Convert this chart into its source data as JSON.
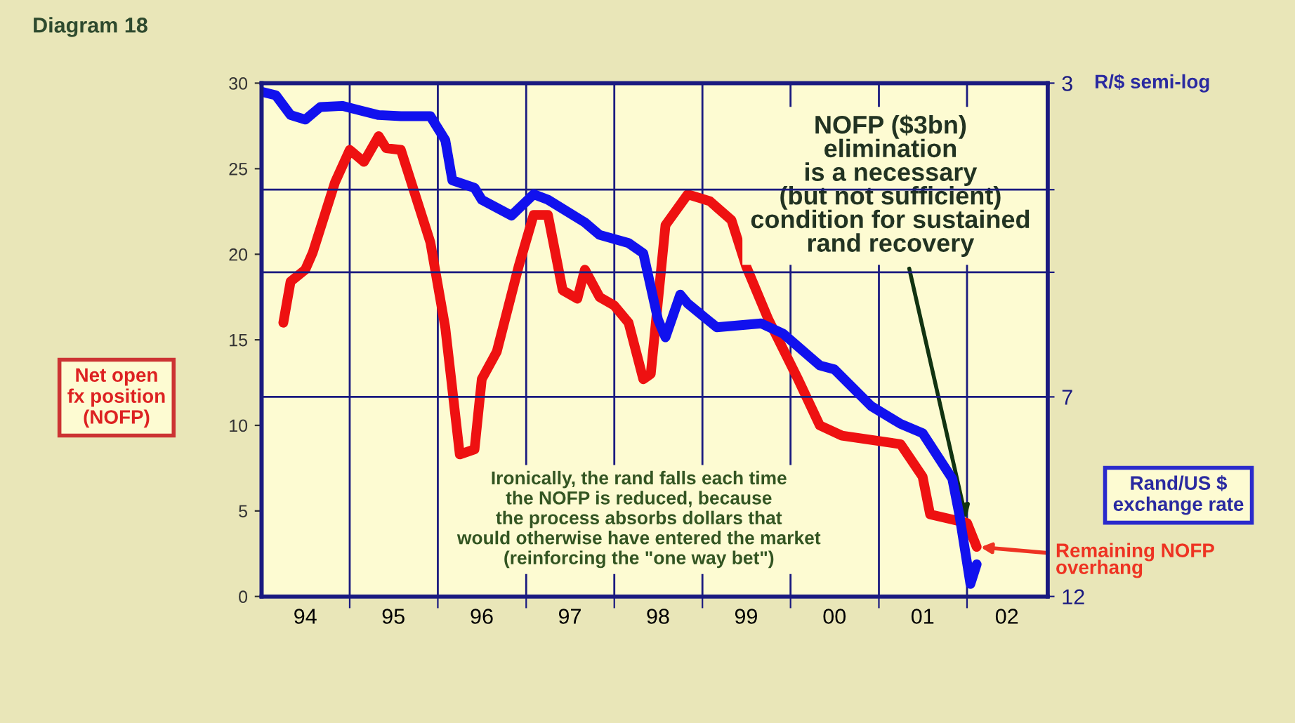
{
  "chart_data": {
    "type": "line",
    "title": "Diagram 18",
    "ylabel": "Net open\nfx position\n(NOFP)",
    "y2label": "Rand/US $\nexchange rate",
    "annotations": [
      "R/$ semi-log",
      {
        "text": "NOFP ($3bn)\nelimination\nis a necessary\n(but not sufficient)\ncondition for sustained\nrand recovery",
        "x": "2002-01",
        "y": 4.3
      },
      "Ironically, the rand falls each time\nthe NOFP is reduced, because\nthe process absorbs dollars that\nwould otherwise have entered the market\n(reinforcing the \"one way bet\")",
      {
        "text": "Remaining NOFP\noverhang",
        "x": "2002-02-10",
        "y": 2.9
      }
    ],
    "xlim": [
      "1994-01-01",
      "2002-12-01"
    ],
    "xticks": [
      {
        "value": "1995-01-01",
        "label": null
      },
      {
        "value": "1996-01-01",
        "label": null
      },
      {
        "value": "1997-01-01",
        "label": null
      },
      {
        "value": "1998-01-01",
        "label": null
      },
      {
        "value": "1999-01-01",
        "label": null
      },
      {
        "value": "2000-01-01",
        "label": null
      },
      {
        "value": "2001-01-01",
        "label": null
      },
      {
        "value": "2002-01-01",
        "label": null
      },
      {
        "value": "1994-07-01",
        "label": "94"
      },
      {
        "value": "1995-07-01",
        "label": "95"
      },
      {
        "value": "1996-07-01",
        "label": "96"
      },
      {
        "value": "1997-07-01",
        "label": "97"
      },
      {
        "value": "1998-07-01",
        "label": "98"
      },
      {
        "value": "1999-07-01",
        "label": "99"
      },
      {
        "value": "2000-07-01",
        "label": "00"
      },
      {
        "value": "2001-07-01",
        "label": "01"
      },
      {
        "value": "2002-06-15",
        "label": "02"
      }
    ],
    "ylim": [
      0,
      30
    ],
    "yticks": [
      0,
      5,
      10,
      15,
      20,
      25,
      30
    ],
    "y2lim": [
      12,
      3
    ],
    "y2ticks": [
      3,
      {
        "value": 4,
        "label": null
      },
      {
        "value": 5,
        "label": null
      },
      7,
      12
    ],
    "log": "y2",
    "grid": true,
    "line_style": "solid",
    "series": [
      {
        "color": "#ee1111",
        "x": [
          "1994-04",
          "1994-05",
          "1994-07",
          "1994-08",
          "1994-11",
          "1995-01",
          "1995-03",
          "1995-05",
          "1995-06",
          "1995-08",
          "1995-12",
          "1996-02",
          "1996-04",
          "1996-06",
          "1996-07",
          "1996-09",
          "1996-12",
          "1997-02",
          "1997-04",
          "1997-06",
          "1997-08",
          "1997-09",
          "1997-11",
          "1998-01",
          "1998-03",
          "1998-05",
          "1998-06",
          "1998-08",
          "1998-11",
          "1999-02",
          "1999-05",
          "1999-07",
          "1999-10",
          "2000-02",
          "2000-05",
          "2000-08",
          "2001-04",
          "2001-07",
          "2001-08",
          "2002-01",
          "2002-02-10"
        ],
        "values": [
          16.0,
          18.4,
          19.1,
          20.1,
          24.2,
          26.1,
          25.4,
          26.9,
          26.2,
          26.1,
          20.7,
          15.7,
          8.3,
          8.6,
          12.7,
          14.3,
          19.3,
          22.3,
          22.3,
          17.9,
          17.4,
          19.1,
          17.5,
          17.0,
          16.0,
          12.7,
          13.0,
          21.7,
          23.5,
          23.1,
          22.0,
          19.3,
          16.2,
          12.7,
          10.0,
          9.4,
          8.9,
          7.0,
          4.8,
          4.3,
          2.9
        ]
      },
      {
        "color": "#1111ee",
        "axis": "y2",
        "x": [
          "1994-01",
          "1994-03",
          "1994-05",
          "1994-07",
          "1994-09",
          "1994-12",
          "1995-05",
          "1995-08",
          "1995-12",
          "1996-02",
          "1996-03",
          "1996-06",
          "1996-07",
          "1996-11",
          "1997-02",
          "1997-04",
          "1997-09",
          "1997-11",
          "1998-03",
          "1998-05",
          "1998-07",
          "1998-08",
          "1998-10",
          "1998-11",
          "1999-03",
          "1999-09",
          "1999-12",
          "2000-05",
          "2000-07",
          "2000-12",
          "2001-04",
          "2001-07",
          "2001-11",
          "2001-12",
          "2002-01-15",
          "2002-02-10"
        ],
        "values": [
          3.07,
          3.1,
          3.27,
          3.31,
          3.2,
          3.19,
          3.27,
          3.28,
          3.28,
          3.5,
          3.9,
          3.98,
          4.11,
          4.29,
          4.05,
          4.11,
          4.37,
          4.52,
          4.62,
          4.75,
          5.68,
          5.96,
          5.31,
          5.44,
          5.8,
          5.74,
          5.9,
          6.43,
          6.5,
          7.18,
          7.53,
          7.72,
          8.73,
          9.65,
          11.6,
          11.0
        ]
      }
    ]
  }
}
